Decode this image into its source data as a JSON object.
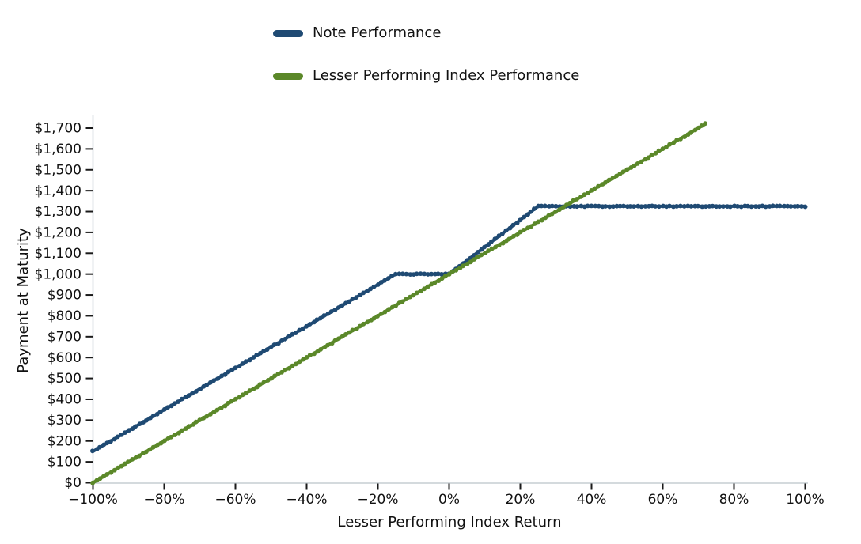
{
  "chart_data": {
    "type": "line",
    "title": "",
    "xlabel": "Lesser Performing Index Return",
    "ylabel": "Payment at Maturity",
    "xlim": [
      -100,
      100
    ],
    "ylim": [
      0,
      1700
    ],
    "grid": false,
    "legend_position": "top-center",
    "x_ticks": {
      "values": [
        -100,
        -80,
        -60,
        -40,
        -20,
        0,
        20,
        40,
        60,
        80,
        100
      ],
      "labels": [
        "−100%",
        "−80%",
        "−60%",
        "−40%",
        "−20%",
        "0%",
        "20%",
        "40%",
        "60%",
        "80%",
        "100%"
      ]
    },
    "y_ticks": {
      "values": [
        0,
        100,
        200,
        300,
        400,
        500,
        600,
        700,
        800,
        900,
        1000,
        1100,
        1200,
        1300,
        1400,
        1500,
        1600,
        1700
      ],
      "labels": [
        "$0",
        "$100",
        "$200",
        "$300",
        "$400",
        "$500",
        "$600",
        "$700",
        "$800",
        "$900",
        "$1,000",
        "$1,100",
        "$1,200",
        "$1,300",
        "$1,400",
        "$1,500",
        "$1,600",
        "$1,700"
      ]
    },
    "series": [
      {
        "name": "Note Performance",
        "color": "#1f4a73",
        "x_range": [
          -100,
          100
        ],
        "breakpoints": [
          [
            -100,
            150
          ],
          [
            -15,
            1000
          ],
          [
            0,
            1000
          ],
          [
            25,
            1325
          ],
          [
            100,
            1325
          ]
        ]
      },
      {
        "name": "Lesser Performing Index Performance",
        "color": "#5b8829",
        "x_range": [
          -100,
          72
        ],
        "breakpoints": [
          [
            -100,
            0
          ],
          [
            72,
            1720
          ]
        ]
      }
    ],
    "style": {
      "spine_color": "#c6cdd2",
      "tick_color": "#1a1a1a",
      "text_color": "#111111"
    }
  }
}
